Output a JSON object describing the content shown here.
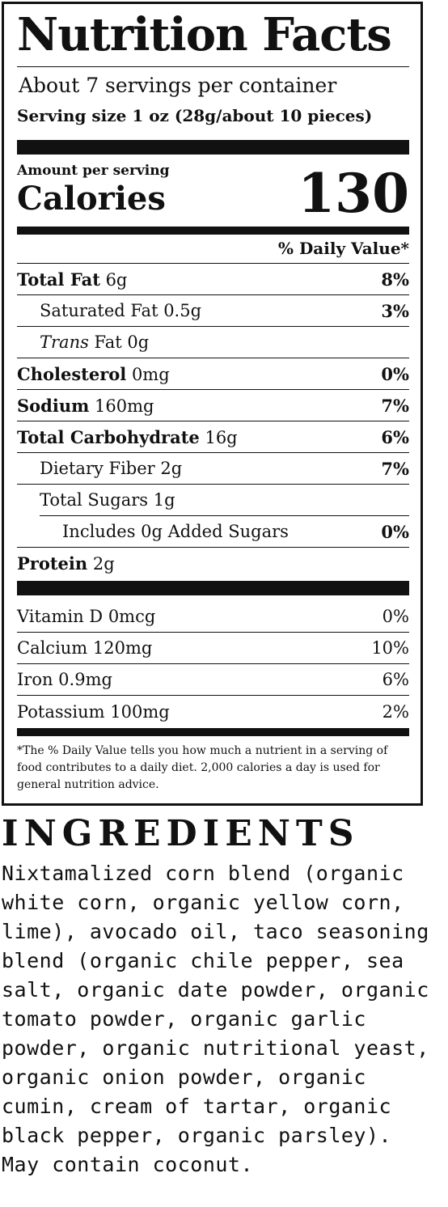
{
  "label": {
    "title": "Nutrition Facts",
    "servings": "About 7 servings per container",
    "serving_size": "Serving size 1 oz (28g/about 10 pieces)",
    "amount_per_serving": "Amount per serving",
    "calories_label": "Calories",
    "calories_value": "130",
    "dv_header": "% Daily Value*",
    "rows": [
      {
        "bold": "Total Fat",
        "text": " 6g",
        "pct": "8%"
      },
      {
        "bold": "",
        "text": "Saturated Fat 0.5g",
        "pct": "3%"
      },
      {
        "italic": "Trans",
        "text": " Fat 0g",
        "pct": ""
      },
      {
        "bold": "Cholesterol",
        "text": " 0mg",
        "pct": "0%"
      },
      {
        "bold": "Sodium",
        "text": " 160mg",
        "pct": "7%"
      },
      {
        "bold": "Total Carbohydrate",
        "text": " 16g",
        "pct": "6%"
      },
      {
        "bold": "",
        "text": "Dietary Fiber 2g",
        "pct": "7%"
      },
      {
        "bold": "",
        "text": "Total Sugars 1g",
        "pct": ""
      },
      {
        "bold": "",
        "text": "Includes 0g Added Sugars",
        "pct": "0%"
      },
      {
        "bold": "Protein",
        "text": " 2g",
        "pct": ""
      }
    ],
    "vitamins": [
      {
        "text": "Vitamin D 0mcg",
        "pct": "0%"
      },
      {
        "text": "Calcium 120mg",
        "pct": "10%"
      },
      {
        "text": "Iron 0.9mg",
        "pct": "6%"
      },
      {
        "text": "Potassium 100mg",
        "pct": "2%"
      }
    ],
    "footnote": "*The % Daily Value tells you how much a nutrient in a serving of food contributes to a daily diet. 2,000 calories a day is used for general nutrition advice."
  },
  "ingredients": {
    "title": "INGREDIENTS",
    "text": "Nixtamalized corn blend (organic white corn, organic yellow corn, lime), avocado oil, taco seasoning blend (organic chile pepper, sea salt, organic date powder, organic tomato powder, organic garlic powder, organic nutritional yeast, organic onion powder, organic cumin, cream of tartar, organic black pepper, organic parsley).",
    "allergen": "May contain coconut."
  }
}
